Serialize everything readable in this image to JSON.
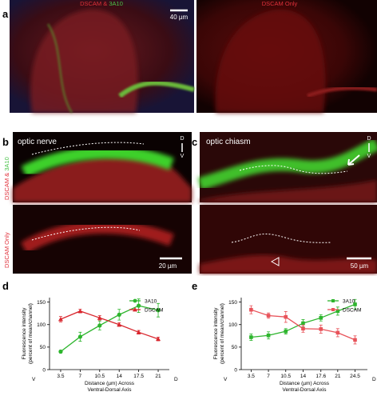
{
  "figure": {
    "a": {
      "label": "a",
      "left_title_red": "DSCAM &",
      "left_title_green": "3A10",
      "right_title": "DSCAM Only",
      "scale": "40 µm"
    },
    "b": {
      "label": "b",
      "title": "optic nerve",
      "side_top_red": "DSCAM &",
      "side_top_green": "3A10",
      "side_bottom": "DSCAM Only",
      "dorsal": "D",
      "ventral": "V",
      "scale": "20 µm"
    },
    "c": {
      "label": "c",
      "title": "optic chiasm",
      "dorsal": "D",
      "ventral": "V",
      "scale": "50 µm"
    },
    "d": {
      "label": "d"
    },
    "e": {
      "label": "e"
    }
  },
  "chart_data": [
    {
      "type": "line",
      "ylabel": [
        "Fluorescence intensity",
        "(percent of mean/channel)"
      ],
      "xlabel": [
        "Distance (µm) Across",
        "Ventral-Dorsal Axis"
      ],
      "start_label": "V",
      "end_label": "D",
      "x": [
        3.5,
        7,
        10.5,
        14,
        17.5,
        21
      ],
      "series": [
        {
          "name": "3A10",
          "color": "#2db52d",
          "marker": "circle",
          "values": [
            40,
            73,
            98,
            122,
            142,
            132
          ],
          "errors": [
            3,
            10,
            10,
            12,
            15,
            15
          ]
        },
        {
          "name": "DSCAM",
          "color": "#d9272e",
          "marker": "triangle",
          "values": [
            112,
            130,
            115,
            100,
            83,
            68
          ],
          "errors": [
            6,
            4,
            5,
            4,
            4,
            4
          ]
        }
      ],
      "xlim": [
        1.5,
        23
      ],
      "xticks": [
        3.5,
        7,
        10.5,
        14,
        17.5,
        21
      ],
      "ylim": [
        0,
        160
      ],
      "yticks": [
        0,
        50,
        100,
        150
      ],
      "legend": "upper right"
    },
    {
      "type": "line",
      "ylabel": [
        "Fluorescence intensity",
        "(percent of mean/channel)"
      ],
      "xlabel": [
        "Distance (µm) Across",
        "Ventral-Dorsal Axis"
      ],
      "start_label": "V",
      "end_label": "D",
      "x": [
        3.5,
        7,
        10.5,
        14,
        17.6,
        21,
        24.5
      ],
      "series": [
        {
          "name": "3A10",
          "color": "#2db52d",
          "marker": "square",
          "values": [
            72,
            76,
            85,
            103,
            115,
            130,
            145
          ],
          "errors": [
            7,
            8,
            6,
            8,
            7,
            9,
            11
          ]
        },
        {
          "name": "DSCAM",
          "color": "#e8535a",
          "marker": "square",
          "values": [
            133,
            120,
            117,
            91,
            90,
            82,
            66
          ],
          "errors": [
            9,
            6,
            12,
            8,
            9,
            9,
            9
          ]
        }
      ],
      "xlim": [
        1.5,
        27
      ],
      "xticks": [
        3.5,
        7,
        10.5,
        14,
        17.6,
        21,
        24.5
      ],
      "ylim": [
        0,
        160
      ],
      "yticks": [
        0,
        50,
        100,
        150
      ],
      "legend": "upper right"
    }
  ]
}
